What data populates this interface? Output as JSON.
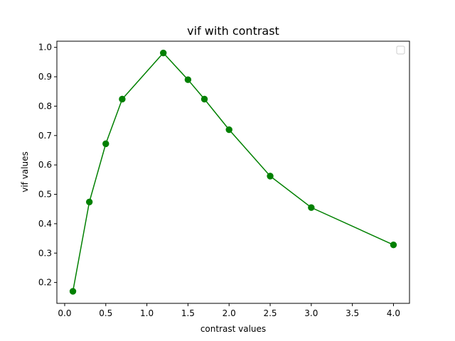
{
  "chart_data": {
    "type": "line",
    "title": "vif with contrast",
    "xlabel": "contrast values",
    "ylabel": "vif values",
    "xlim": [
      -0.095,
      4.195
    ],
    "ylim": [
      0.129,
      1.021
    ],
    "xticks": [
      0.0,
      0.5,
      1.0,
      1.5,
      2.0,
      2.5,
      3.0,
      3.5,
      4.0
    ],
    "xtick_labels": [
      "0.0",
      "0.5",
      "1.0",
      "1.5",
      "2.0",
      "2.5",
      "3.0",
      "3.5",
      "4.0"
    ],
    "yticks": [
      0.2,
      0.3,
      0.4,
      0.5,
      0.6,
      0.7,
      0.8,
      0.9,
      1.0
    ],
    "ytick_labels": [
      "0.2",
      "0.3",
      "0.4",
      "0.5",
      "0.6",
      "0.7",
      "0.8",
      "0.9",
      "1.0"
    ],
    "grid": false,
    "legend": {
      "placement": "upper-right",
      "entries": []
    },
    "series": [
      {
        "color": "#008000",
        "marker": "circle",
        "x": [
          0.1,
          0.3,
          0.5,
          0.7,
          1.2,
          1.5,
          1.7,
          2.0,
          2.5,
          3.0,
          4.0
        ],
        "y": [
          0.17,
          0.474,
          0.672,
          0.824,
          0.981,
          0.89,
          0.824,
          0.72,
          0.562,
          0.455,
          0.328
        ]
      }
    ]
  }
}
